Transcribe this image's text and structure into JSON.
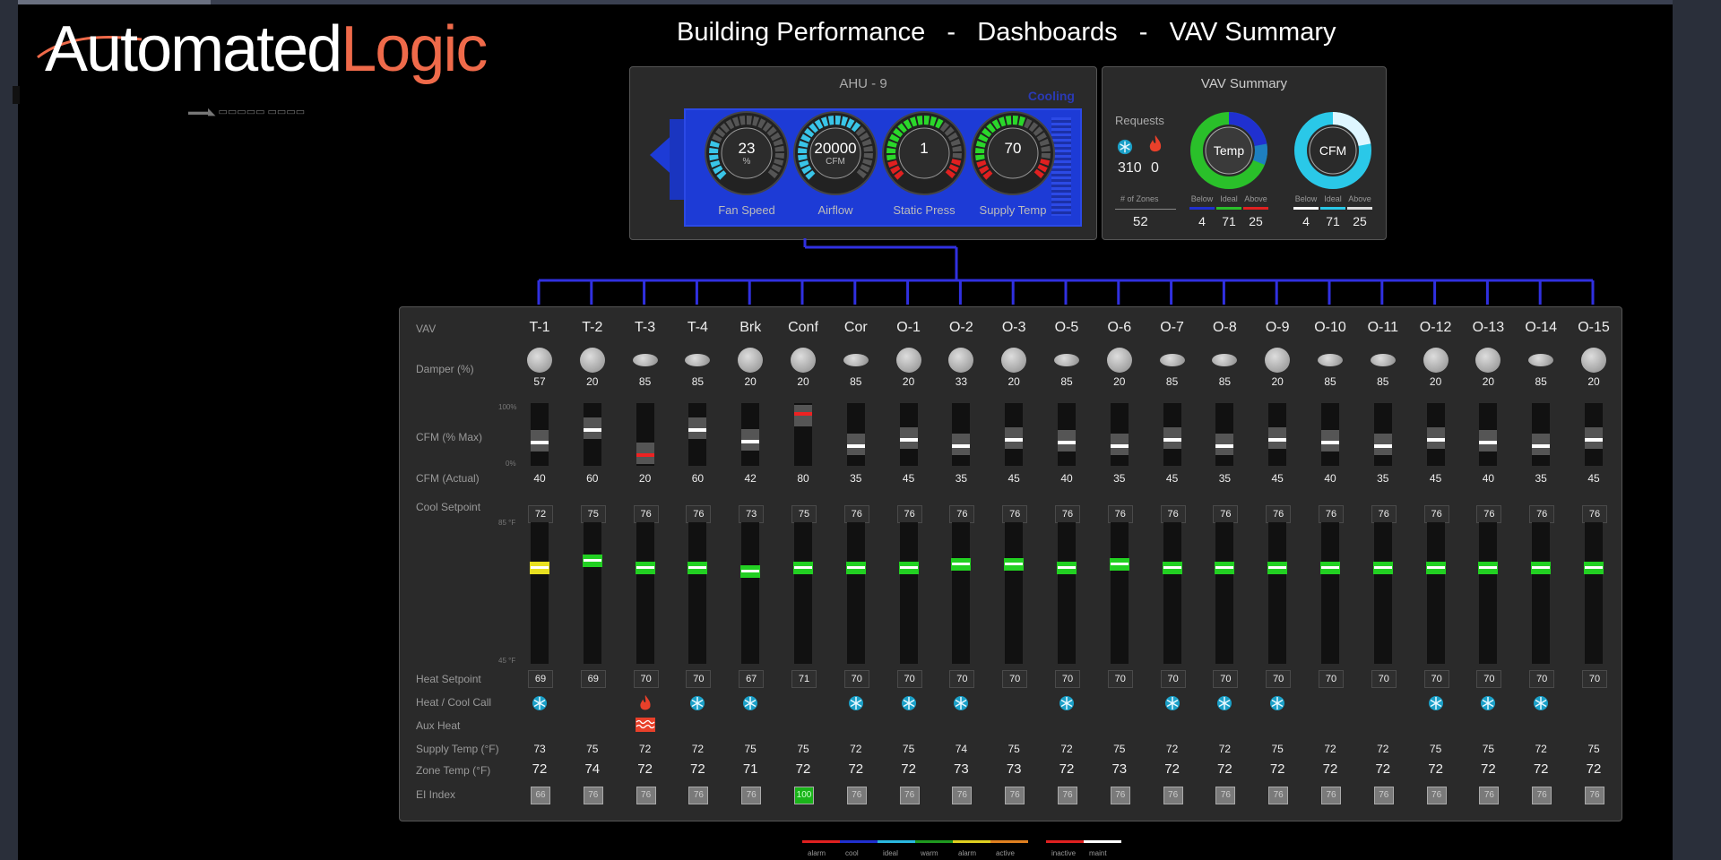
{
  "brand": {
    "part1": "Automated",
    "part2": "Logic",
    "subtitle": "▬▬◣ ▭▭▭▭▭ ▭▭▭▭"
  },
  "title": "Building Performance   -   Dashboards   -   VAV Summary",
  "ahu": {
    "title": "AHU - 9",
    "mode": "Cooling",
    "gauges": [
      {
        "label": "Fan Speed",
        "value": "23",
        "unit": "%",
        "fill": 0.23,
        "color": "#39c5e8"
      },
      {
        "label": "Airflow",
        "value": "20000",
        "unit": "CFM",
        "fill": 0.65,
        "color": "#39c5e8"
      },
      {
        "label": "Static Press",
        "value": "1",
        "unit": "",
        "fill": 0.6,
        "color": "#2ad82a"
      },
      {
        "label": "Supply Temp",
        "value": "70",
        "unit": "",
        "fill": 0.55,
        "color": "#2ad82a"
      }
    ]
  },
  "vav_summary": {
    "title": "VAV Summary",
    "requests_label": "Requests",
    "cool_requests": "310",
    "heat_requests": "0",
    "zones_label": "# of Zones",
    "zones": "52",
    "temp": {
      "label": "Temp",
      "below": "4",
      "ideal": "71",
      "above": "25"
    },
    "cfm": {
      "label": "CFM",
      "below": "4",
      "ideal": "71",
      "above": "25"
    },
    "legend": {
      "below": "Below",
      "ideal": "Ideal",
      "above": "Above"
    }
  },
  "row_labels": {
    "vav": "VAV",
    "damper": "Damper (%)",
    "cfm_max": "CFM (% Max)",
    "cfm_actual": "CFM (Actual)",
    "cool_sp": "Cool Setpoint",
    "heat_sp": "Heat Setpoint",
    "call": "Heat / Cool Call",
    "aux": "Aux Heat",
    "supply": "Supply Temp (°F)",
    "zone": "Zone Temp (°F)",
    "ei": "EI Index"
  },
  "ticks": {
    "cfm_top": "100%",
    "cfm_bottom": "0%",
    "temp_top": "85 °F",
    "temp_bottom": "45 °F"
  },
  "vavs": [
    {
      "name": "T-1",
      "damper": "57",
      "cfm": "40",
      "cool": "72",
      "heat": "69",
      "supply": "73",
      "zone": "72",
      "ei": "66",
      "call": "cool",
      "mark": "yellow"
    },
    {
      "name": "T-2",
      "damper": "20",
      "cfm": "60",
      "cool": "75",
      "heat": "69",
      "supply": "75",
      "zone": "74",
      "ei": "76",
      "call": "",
      "mark": "green"
    },
    {
      "name": "T-3",
      "damper": "85",
      "cfm": "20",
      "cool": "76",
      "heat": "70",
      "supply": "72",
      "zone": "72",
      "ei": "76",
      "call": "heat",
      "mark": "green"
    },
    {
      "name": "T-4",
      "damper": "85",
      "cfm": "60",
      "cool": "76",
      "heat": "70",
      "supply": "72",
      "zone": "72",
      "ei": "76",
      "call": "cool",
      "mark": "green"
    },
    {
      "name": "Brk",
      "damper": "20",
      "cfm": "42",
      "cool": "73",
      "heat": "67",
      "supply": "75",
      "zone": "71",
      "ei": "76",
      "call": "cool",
      "mark": "green"
    },
    {
      "name": "Conf",
      "damper": "20",
      "cfm": "80",
      "cool": "75",
      "heat": "71",
      "supply": "75",
      "zone": "72",
      "ei": "100",
      "call": "",
      "mark": "green"
    },
    {
      "name": "Cor",
      "damper": "85",
      "cfm": "35",
      "cool": "76",
      "heat": "70",
      "supply": "72",
      "zone": "72",
      "ei": "76",
      "call": "cool",
      "mark": "green"
    },
    {
      "name": "O-1",
      "damper": "20",
      "cfm": "45",
      "cool": "76",
      "heat": "70",
      "supply": "75",
      "zone": "72",
      "ei": "76",
      "call": "cool",
      "mark": "green"
    },
    {
      "name": "O-2",
      "damper": "33",
      "cfm": "35",
      "cool": "76",
      "heat": "70",
      "supply": "74",
      "zone": "73",
      "ei": "76",
      "call": "cool",
      "mark": "green"
    },
    {
      "name": "O-3",
      "damper": "20",
      "cfm": "45",
      "cool": "76",
      "heat": "70",
      "supply": "75",
      "zone": "73",
      "ei": "76",
      "call": "",
      "mark": "green"
    },
    {
      "name": "O-5",
      "damper": "85",
      "cfm": "40",
      "cool": "76",
      "heat": "70",
      "supply": "72",
      "zone": "72",
      "ei": "76",
      "call": "cool",
      "mark": "green"
    },
    {
      "name": "O-6",
      "damper": "20",
      "cfm": "35",
      "cool": "76",
      "heat": "70",
      "supply": "75",
      "zone": "73",
      "ei": "76",
      "call": "",
      "mark": "green"
    },
    {
      "name": "O-7",
      "damper": "85",
      "cfm": "45",
      "cool": "76",
      "heat": "70",
      "supply": "72",
      "zone": "72",
      "ei": "76",
      "call": "cool",
      "mark": "green"
    },
    {
      "name": "O-8",
      "damper": "85",
      "cfm": "35",
      "cool": "76",
      "heat": "70",
      "supply": "72",
      "zone": "72",
      "ei": "76",
      "call": "cool",
      "mark": "green"
    },
    {
      "name": "O-9",
      "damper": "20",
      "cfm": "45",
      "cool": "76",
      "heat": "70",
      "supply": "75",
      "zone": "72",
      "ei": "76",
      "call": "cool",
      "mark": "green"
    },
    {
      "name": "O-10",
      "damper": "85",
      "cfm": "40",
      "cool": "76",
      "heat": "70",
      "supply": "72",
      "zone": "72",
      "ei": "76",
      "call": "",
      "mark": "green"
    },
    {
      "name": "O-11",
      "damper": "85",
      "cfm": "35",
      "cool": "76",
      "heat": "70",
      "supply": "72",
      "zone": "72",
      "ei": "76",
      "call": "",
      "mark": "green"
    },
    {
      "name": "O-12",
      "damper": "20",
      "cfm": "45",
      "cool": "76",
      "heat": "70",
      "supply": "75",
      "zone": "72",
      "ei": "76",
      "call": "cool",
      "mark": "green"
    },
    {
      "name": "O-13",
      "damper": "20",
      "cfm": "40",
      "cool": "76",
      "heat": "70",
      "supply": "75",
      "zone": "72",
      "ei": "76",
      "call": "cool",
      "mark": "green"
    },
    {
      "name": "O-14",
      "damper": "85",
      "cfm": "35",
      "cool": "76",
      "heat": "70",
      "supply": "72",
      "zone": "72",
      "ei": "76",
      "call": "cool",
      "mark": "green"
    },
    {
      "name": "O-15",
      "damper": "20",
      "cfm": "45",
      "cool": "76",
      "heat": "70",
      "supply": "75",
      "zone": "72",
      "ei": "76",
      "call": "",
      "mark": "green"
    }
  ],
  "legend": [
    {
      "label": "alarm",
      "color": "#e02020"
    },
    {
      "label": "cool",
      "color": "#2030d0"
    },
    {
      "label": "ideal",
      "color": "#2ab8e0"
    },
    {
      "label": "warm",
      "color": "#1f9a1f"
    },
    {
      "label": "alarm",
      "color": "#e0d020"
    },
    {
      "label": "active",
      "color": "#e08020"
    },
    {
      "label": "inactive",
      "color": "#e02020"
    },
    {
      "label": "maint",
      "color": "#ffffff"
    }
  ]
}
